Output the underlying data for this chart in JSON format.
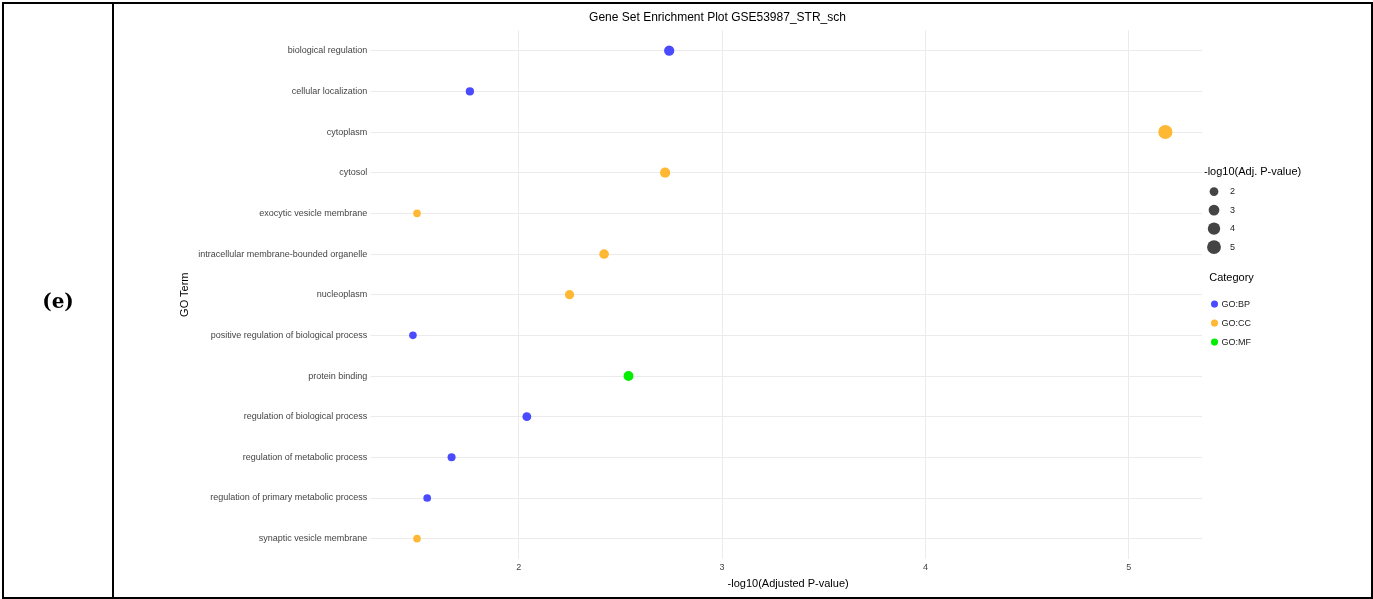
{
  "chart_data": {
    "type": "bubble",
    "title": "Gene Set Enrichment Plot GSE53987_STR_sch",
    "xlabel": "-log10(Adjusted P-value)",
    "ylabel": "GO Term",
    "legend_title": "Category",
    "orientation": "horizontal",
    "categories": [
      "biological regulation",
      "cellular localization",
      "cytoplasm",
      "cytosol",
      "exocytic vesicle membrane",
      "intracellular membrane-bounded organelle",
      "nucleoplasm",
      "positive regulation of biological process",
      "protein binding",
      "regulation of biological process",
      "regulation of metabolic process",
      "regulation of primary metabolic process",
      "synaptic vesicle membrane"
    ],
    "series": [
      {
        "name": "GO:BP",
        "color": "#4a4aff",
        "values": [
          2.74,
          1.76,
          null,
          null,
          null,
          null,
          null,
          1.48,
          null,
          2.04,
          1.67,
          1.55,
          null
        ],
        "sizes": [
          2.74,
          1.76,
          null,
          null,
          null,
          null,
          null,
          1.48,
          null,
          2.04,
          1.67,
          1.55,
          null
        ]
      },
      {
        "name": "GO:CC",
        "color": "#ffb833",
        "values": [
          null,
          null,
          5.18,
          2.72,
          1.5,
          2.42,
          2.25,
          null,
          null,
          null,
          null,
          null,
          1.5
        ],
        "sizes": [
          null,
          null,
          5.18,
          2.72,
          1.5,
          2.42,
          2.25,
          null,
          null,
          null,
          null,
          null,
          1.5
        ]
      },
      {
        "name": "GO:MF",
        "color": "#00ee00",
        "values": [
          null,
          null,
          null,
          null,
          null,
          null,
          null,
          null,
          2.54,
          null,
          null,
          null,
          null
        ],
        "sizes": [
          null,
          null,
          null,
          null,
          null,
          null,
          null,
          null,
          2.54,
          null,
          null,
          null,
          null
        ]
      }
    ],
    "size_legend": [
      2,
      3,
      4,
      5
    ],
    "xlim": [
      1.29,
      5.36
    ],
    "xticks": [
      2,
      3,
      4,
      5
    ],
    "grid": true,
    "legend": "right",
    "marker": "circle",
    "annotations": [
      "-log10(Adj. P-value)",
      "(e)"
    ]
  }
}
